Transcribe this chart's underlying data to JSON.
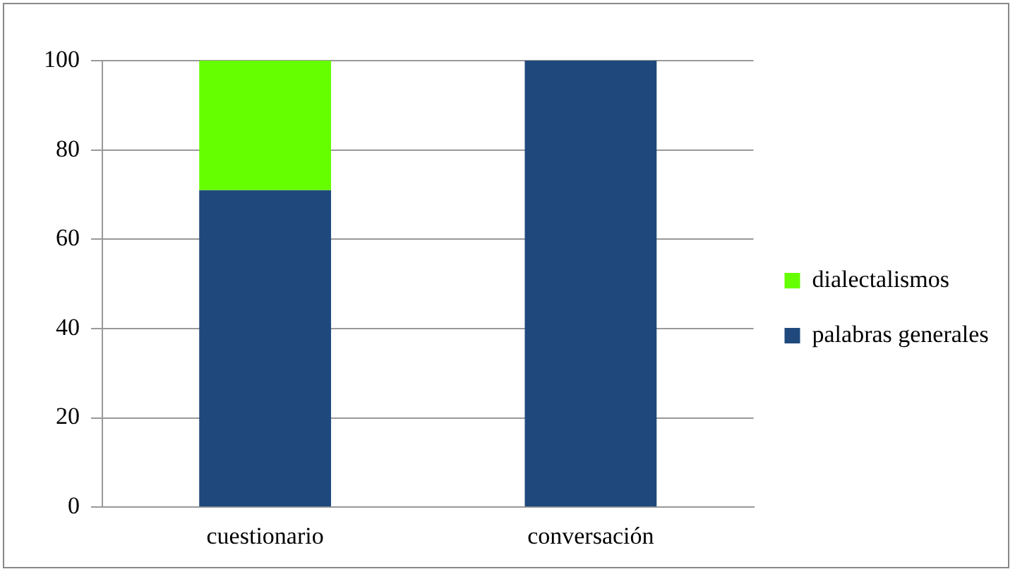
{
  "chart_data": {
    "type": "bar",
    "stacked": true,
    "categories": [
      "cuestionario",
      "conversación"
    ],
    "series": [
      {
        "name": "palabras generales",
        "color": "#1f497d",
        "values": [
          71,
          100
        ]
      },
      {
        "name": "dialectalismos",
        "color": "#66ff00",
        "values": [
          29,
          0
        ]
      }
    ],
    "ylim": [
      0,
      100
    ],
    "yticks": [
      0,
      20,
      40,
      60,
      80,
      100
    ],
    "grid": "y",
    "legend": "right"
  }
}
